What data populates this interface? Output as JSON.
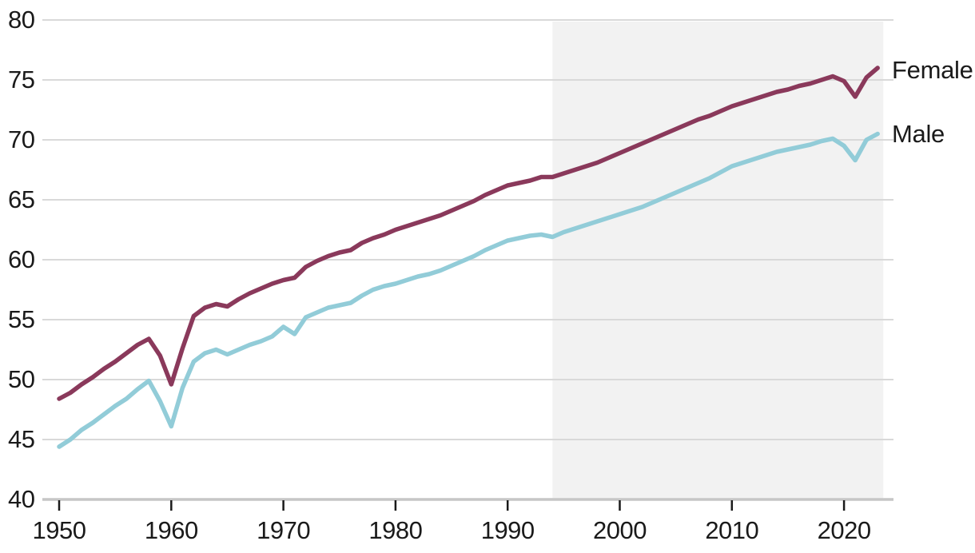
{
  "chart_data": {
    "type": "line",
    "title": "",
    "xlabel": "",
    "ylabel": "",
    "ylim": [
      40,
      80
    ],
    "xlim": [
      1950,
      2023
    ],
    "grid": true,
    "legend_position": "right-end-of-lines",
    "yticks": [
      40,
      45,
      50,
      55,
      60,
      65,
      70,
      75,
      80
    ],
    "xticks": [
      1950,
      1960,
      1970,
      1980,
      1990,
      2000,
      2010,
      2020
    ],
    "shaded_region": {
      "start_year": 1994,
      "end_year": 2023
    },
    "colors": {
      "grid": "#d9d9d9",
      "axis": "#c6c6c6",
      "band": "#f2f2f2",
      "text": "#1a1a1a",
      "female": "#8a395b",
      "male": "#92ccd8"
    },
    "x": [
      1950,
      1951,
      1952,
      1953,
      1954,
      1955,
      1956,
      1957,
      1958,
      1959,
      1960,
      1961,
      1962,
      1963,
      1964,
      1965,
      1966,
      1967,
      1968,
      1969,
      1970,
      1971,
      1972,
      1973,
      1974,
      1975,
      1976,
      1977,
      1978,
      1979,
      1980,
      1981,
      1982,
      1983,
      1984,
      1985,
      1986,
      1987,
      1988,
      1989,
      1990,
      1991,
      1992,
      1993,
      1994,
      1995,
      1996,
      1997,
      1998,
      1999,
      2000,
      2001,
      2002,
      2003,
      2004,
      2005,
      2006,
      2007,
      2008,
      2009,
      2010,
      2011,
      2012,
      2013,
      2014,
      2015,
      2016,
      2017,
      2018,
      2019,
      2020,
      2021,
      2022,
      2023
    ],
    "series": [
      {
        "name": "Female",
        "color": "#8a395b",
        "values": [
          48.4,
          48.9,
          49.6,
          50.2,
          50.9,
          51.5,
          52.2,
          52.9,
          53.4,
          52.0,
          49.6,
          52.6,
          55.3,
          56.0,
          56.3,
          56.1,
          56.7,
          57.2,
          57.6,
          58.0,
          58.3,
          58.5,
          59.4,
          59.9,
          60.3,
          60.6,
          60.8,
          61.4,
          61.8,
          62.1,
          62.5,
          62.8,
          63.1,
          63.4,
          63.7,
          64.1,
          64.5,
          64.9,
          65.4,
          65.8,
          66.2,
          66.4,
          66.6,
          66.9,
          66.9,
          67.2,
          67.5,
          67.8,
          68.1,
          68.5,
          68.9,
          69.3,
          69.7,
          70.1,
          70.5,
          70.9,
          71.3,
          71.7,
          72.0,
          72.4,
          72.8,
          73.1,
          73.4,
          73.7,
          74.0,
          74.2,
          74.5,
          74.7,
          75.0,
          75.3,
          74.9,
          73.6,
          75.2,
          76.0
        ]
      },
      {
        "name": "Male",
        "color": "#92ccd8",
        "values": [
          44.4,
          45.0,
          45.8,
          46.4,
          47.1,
          47.8,
          48.4,
          49.2,
          49.9,
          48.2,
          46.1,
          49.3,
          51.5,
          52.2,
          52.5,
          52.1,
          52.5,
          52.9,
          53.2,
          53.6,
          54.4,
          53.8,
          55.2,
          55.6,
          56.0,
          56.2,
          56.4,
          57.0,
          57.5,
          57.8,
          58.0,
          58.3,
          58.6,
          58.8,
          59.1,
          59.5,
          59.9,
          60.3,
          60.8,
          61.2,
          61.6,
          61.8,
          62.0,
          62.1,
          61.9,
          62.3,
          62.6,
          62.9,
          63.2,
          63.5,
          63.8,
          64.1,
          64.4,
          64.8,
          65.2,
          65.6,
          66.0,
          66.4,
          66.8,
          67.3,
          67.8,
          68.1,
          68.4,
          68.7,
          69.0,
          69.2,
          69.4,
          69.6,
          69.9,
          70.1,
          69.5,
          68.3,
          70.0,
          70.5
        ]
      }
    ]
  }
}
